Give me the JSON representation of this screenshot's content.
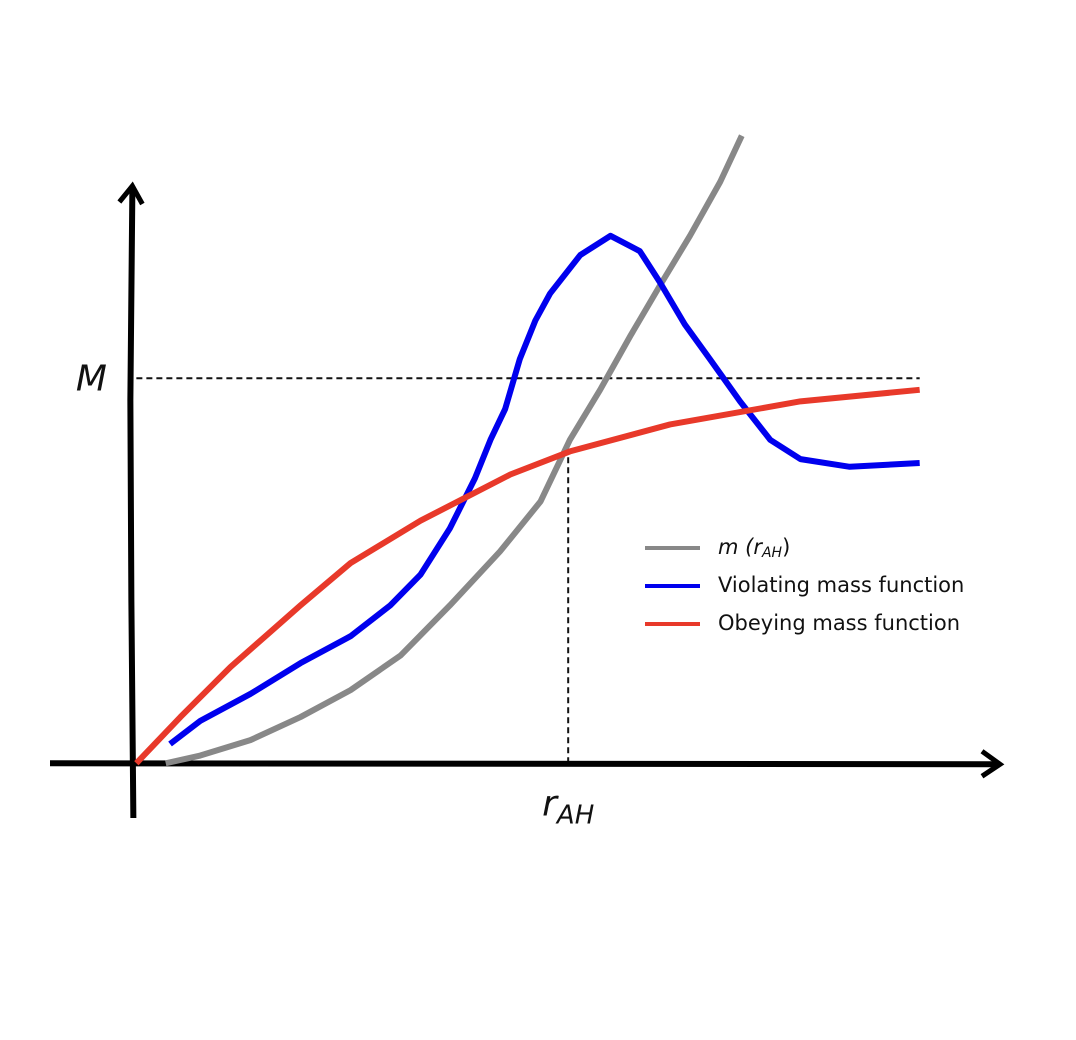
{
  "chart_data": {
    "type": "line",
    "xlim": [
      -1,
      10
    ],
    "ylim": [
      -0.15,
      1.65
    ],
    "xticks": [
      {
        "value": 5,
        "label": "r",
        "subscript": "AH"
      }
    ],
    "yticks": [
      {
        "value": 1,
        "label": "M"
      }
    ],
    "series": [
      {
        "name": [
          "m (r",
          "AH",
          ")"
        ],
        "color": "#888888",
        "x": [
          0.34,
          0.74,
          1.32,
          1.9,
          2.48,
          3.06,
          3.63,
          4.21,
          4.68,
          5.02,
          5.37,
          5.72,
          6.06,
          6.41,
          6.76,
          7.01
        ],
        "values": [
          0.0,
          0.02,
          0.06,
          0.12,
          0.19,
          0.28,
          0.41,
          0.55,
          0.68,
          0.84,
          0.97,
          1.11,
          1.24,
          1.37,
          1.51,
          1.63
        ]
      },
      {
        "name": [
          "Violating mass function"
        ],
        "color": "#0000ee",
        "x": [
          0.39,
          0.74,
          1.32,
          1.9,
          2.48,
          2.94,
          3.29,
          3.63,
          3.92,
          4.1,
          4.27,
          4.44,
          4.62,
          4.79,
          5.14,
          5.49,
          5.83,
          6.06,
          6.35,
          6.64,
          6.99,
          7.34,
          7.69,
          8.26,
          9.07
        ],
        "values": [
          0.05,
          0.11,
          0.18,
          0.26,
          0.33,
          0.41,
          0.49,
          0.61,
          0.74,
          0.84,
          0.92,
          1.05,
          1.15,
          1.22,
          1.32,
          1.37,
          1.33,
          1.25,
          1.14,
          1.05,
          0.94,
          0.84,
          0.79,
          0.77,
          0.78
        ]
      },
      {
        "name": [
          "Obeying mass function"
        ],
        "color": "#e8392a",
        "x": [
          0,
          0.51,
          1.09,
          1.9,
          2.48,
          3.29,
          4.33,
          5.02,
          6.18,
          7.69,
          9.07
        ],
        "values": [
          0,
          0.12,
          0.25,
          0.41,
          0.52,
          0.63,
          0.75,
          0.81,
          0.88,
          0.94,
          0.97
        ]
      }
    ]
  }
}
